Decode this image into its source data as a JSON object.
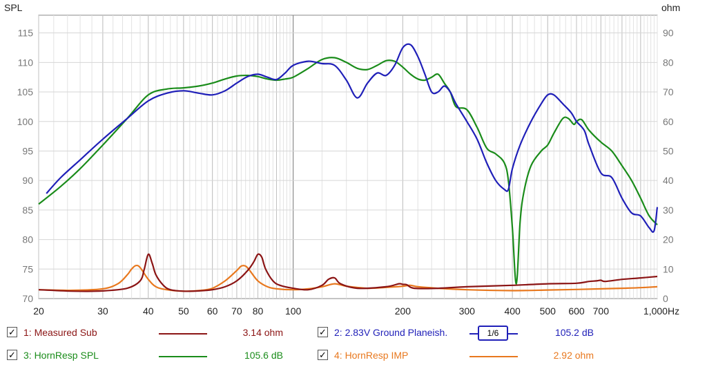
{
  "chart_data": {
    "type": "line",
    "ylabel_left": "SPL",
    "ylabel_right": "ohm",
    "x_scale": "log",
    "xlim": [
      20,
      1000
    ],
    "ylim_left": [
      70,
      118
    ],
    "ylim_right": [
      0,
      96
    ],
    "x_ticks": [
      {
        "v": 20,
        "label": "20"
      },
      {
        "v": 30,
        "label": "30"
      },
      {
        "v": 40,
        "label": "40"
      },
      {
        "v": 50,
        "label": "50"
      },
      {
        "v": 60,
        "label": "60"
      },
      {
        "v": 70,
        "label": "70"
      },
      {
        "v": 80,
        "label": "80"
      },
      {
        "v": 100,
        "label": "100"
      },
      {
        "v": 200,
        "label": "200"
      },
      {
        "v": 300,
        "label": "300"
      },
      {
        "v": 400,
        "label": "400"
      },
      {
        "v": 500,
        "label": "500"
      },
      {
        "v": 600,
        "label": "600"
      },
      {
        "v": 700,
        "label": "700"
      },
      {
        "v": 1000,
        "label": "1,000Hz"
      }
    ],
    "y_ticks_left": [
      "70",
      "75",
      "80",
      "85",
      "90",
      "95",
      "100",
      "105",
      "110",
      "115"
    ],
    "y_ticks_right": [
      "0",
      "10",
      "20",
      "30",
      "40",
      "50",
      "60",
      "70",
      "80",
      "90"
    ],
    "grid": true,
    "series": [
      {
        "name": "2.83V Ground Planeish",
        "axis": "left",
        "color": "#1f1fb8",
        "x": [
          21,
          23,
          26,
          30,
          35,
          40,
          45,
          50,
          55,
          60,
          65,
          70,
          75,
          80,
          85,
          90,
          95,
          100,
          110,
          120,
          130,
          140,
          150,
          160,
          170,
          180,
          190,
          200,
          210,
          220,
          230,
          240,
          250,
          260,
          270,
          280,
          300,
          320,
          340,
          360,
          380,
          390,
          400,
          420,
          450,
          480,
          500,
          520,
          550,
          580,
          600,
          630,
          650,
          700,
          750,
          800,
          850,
          900,
          950,
          980,
          1000
        ],
        "y": [
          87.8,
          90.5,
          93.5,
          97,
          100.5,
          103.5,
          104.8,
          105.2,
          104.8,
          104.5,
          105.2,
          106.5,
          107.6,
          108,
          107.5,
          107.1,
          108.2,
          109.5,
          110.2,
          109.8,
          109.5,
          107,
          104,
          106.5,
          108.2,
          107.8,
          109.5,
          112.5,
          113,
          111,
          108,
          105,
          105,
          106,
          105,
          103,
          100,
          97,
          93,
          90,
          88.5,
          88.5,
          92,
          96,
          100,
          103,
          104.5,
          104.5,
          103,
          101.5,
          100,
          98.5,
          96,
          91.3,
          90.5,
          87,
          84.5,
          84,
          82,
          81.5,
          85.5
        ]
      },
      {
        "name": "HornResp SPL",
        "axis": "left",
        "color": "#1a8c1a",
        "x": [
          20,
          23,
          26,
          30,
          35,
          40,
          45,
          50,
          55,
          60,
          65,
          70,
          75,
          80,
          85,
          90,
          95,
          100,
          110,
          120,
          130,
          140,
          150,
          160,
          170,
          180,
          190,
          200,
          210,
          220,
          230,
          240,
          250,
          260,
          270,
          280,
          300,
          320,
          340,
          360,
          380,
          390,
          400,
          410,
          420,
          430,
          450,
          480,
          500,
          520,
          550,
          570,
          590,
          600,
          620,
          650,
          700,
          750,
          800,
          850,
          900,
          950,
          1000
        ],
        "y": [
          86,
          89,
          92,
          96,
          100.5,
          104.5,
          105.5,
          105.7,
          106,
          106.5,
          107.2,
          107.7,
          107.8,
          107.6,
          107.2,
          107,
          107.2,
          107.5,
          109,
          110.5,
          110.8,
          110,
          109,
          108.8,
          109.5,
          110.3,
          110.2,
          109.2,
          108,
          107.2,
          107,
          107.5,
          108,
          106.5,
          105,
          102.5,
          102,
          99,
          95.5,
          94.5,
          93,
          90,
          82,
          72.5,
          83,
          88,
          92.5,
          95,
          96,
          98,
          100.5,
          100.5,
          99.5,
          100,
          100.3,
          98.5,
          96.5,
          95,
          92.5,
          90,
          87,
          84,
          82.5
        ]
      },
      {
        "name": "Measured Sub",
        "axis": "right",
        "color": "#8b1414",
        "x": [
          20,
          25,
          30,
          35,
          38,
          39,
          40,
          41,
          42,
          44,
          46,
          50,
          55,
          60,
          65,
          70,
          75,
          78,
          80,
          82,
          84,
          88,
          92,
          100,
          110,
          120,
          125,
          130,
          135,
          150,
          180,
          195,
          200,
          205,
          215,
          250,
          300,
          400,
          500,
          600,
          650,
          680,
          700,
          720,
          800,
          900,
          1000
        ],
        "y": [
          3,
          2.5,
          2.6,
          3.5,
          6,
          10,
          15,
          12,
          8,
          4.5,
          3,
          2.5,
          2.6,
          3,
          4,
          6,
          9.5,
          12.5,
          15,
          14,
          10,
          6,
          4.5,
          3.5,
          3,
          4.5,
          6.5,
          7,
          5,
          3.5,
          4,
          5,
          4.8,
          4.7,
          3.5,
          3.5,
          4,
          4.5,
          5,
          5.2,
          5.8,
          6,
          6.2,
          5.8,
          6.5,
          7,
          7.5
        ]
      },
      {
        "name": "HornResp IMP",
        "axis": "right",
        "color": "#e8781e",
        "x": [
          20,
          25,
          30,
          33,
          35,
          36,
          37,
          38,
          40,
          42,
          45,
          50,
          55,
          60,
          65,
          70,
          72,
          74,
          76,
          80,
          85,
          90,
          100,
          110,
          120,
          130,
          140,
          160,
          180,
          200,
          210,
          220,
          250,
          300,
          400,
          500,
          600,
          700,
          800,
          900,
          1000
        ],
        "y": [
          3,
          2.8,
          3.3,
          5,
          8,
          10,
          11.2,
          10.5,
          6.5,
          4,
          3,
          2.5,
          2.7,
          3.5,
          6,
          9.5,
          11,
          11,
          9.5,
          6,
          4,
          3.3,
          3,
          3.3,
          4,
          5,
          4.2,
          3.5,
          3.8,
          4.2,
          4.5,
          4,
          3.5,
          3,
          2.7,
          2.9,
          3.1,
          3.3,
          3.5,
          3.7,
          4
        ]
      }
    ]
  },
  "legend": [
    {
      "checked": "✓",
      "label": "1: Measured Sub",
      "value": "3.14 ohm",
      "color": "#8b1414"
    },
    {
      "checked": "✓",
      "label": "2: 2.83V Ground Planeish.",
      "value": "105.2 dB",
      "color": "#1f1fb8",
      "smoothing": "1/6"
    },
    {
      "checked": "✓",
      "label": "3: HornResp SPL",
      "value": "105.6 dB",
      "color": "#1a8c1a"
    },
    {
      "checked": "✓",
      "label": "4: HornResp IMP",
      "value": "2.92 ohm",
      "color": "#e8781e"
    }
  ]
}
